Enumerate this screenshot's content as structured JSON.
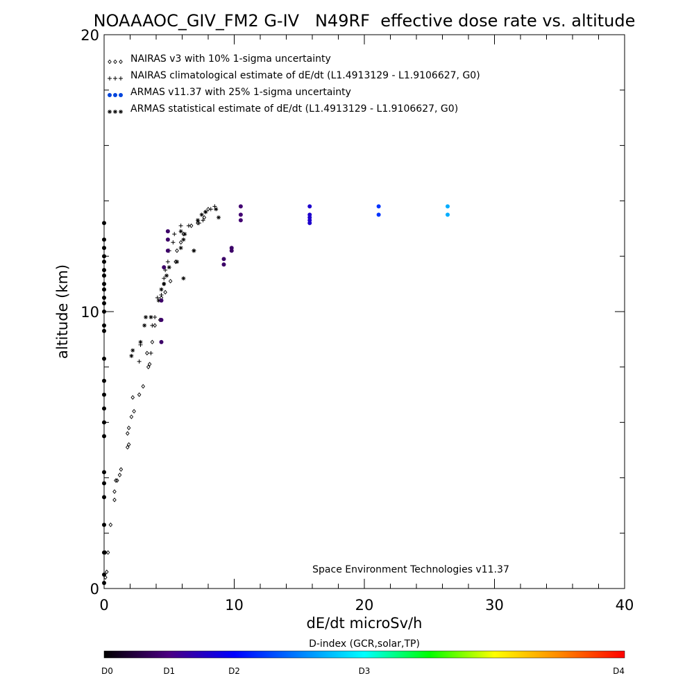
{
  "chart_data": {
    "type": "scatter",
    "title": "NOAAAOC_GIV_FM2 G-IV   N49RF  effective dose rate vs. altitude",
    "xlabel": "dE/dt microSv/h",
    "ylabel": "altitude (km)",
    "xlim": [
      0,
      40
    ],
    "ylim": [
      0,
      20
    ],
    "x_ticks": [
      0,
      10,
      20,
      30,
      40
    ],
    "y_ticks": [
      0,
      10,
      20
    ],
    "grid": false,
    "legend_position": "top-left",
    "credit": "Space Environment Technologies v11.37",
    "colorbar": {
      "title": "D-index (GCR,solar,TP)",
      "labels": [
        "D0",
        "D1",
        "D2",
        "D3",
        "D4"
      ],
      "positions": [
        0,
        0.125,
        0.25,
        0.5,
        1
      ]
    },
    "series": [
      {
        "name": "NAIRAS v3 with 10% 1-sigma uncertainty",
        "marker": "diamond",
        "color": "#000000",
        "points": [
          [
            0.1,
            0.4
          ],
          [
            0.2,
            0.6
          ],
          [
            0.1,
            1.3
          ],
          [
            0.3,
            1.3
          ],
          [
            0.5,
            2.3
          ],
          [
            0.8,
            3.2
          ],
          [
            0.8,
            3.5
          ],
          [
            0.9,
            3.9
          ],
          [
            1.0,
            3.9
          ],
          [
            1.2,
            4.1
          ],
          [
            1.3,
            4.3
          ],
          [
            1.8,
            5.1
          ],
          [
            1.9,
            5.2
          ],
          [
            1.8,
            5.6
          ],
          [
            1.9,
            5.8
          ],
          [
            2.1,
            6.2
          ],
          [
            2.3,
            6.4
          ],
          [
            2.2,
            6.9
          ],
          [
            2.7,
            7.0
          ],
          [
            3.0,
            7.3
          ],
          [
            3.4,
            8.0
          ],
          [
            3.5,
            8.1
          ],
          [
            3.3,
            8.5
          ],
          [
            3.7,
            8.9
          ],
          [
            3.9,
            9.5
          ],
          [
            4.3,
            9.7
          ],
          [
            4.4,
            10.5
          ],
          [
            4.7,
            10.7
          ],
          [
            4.6,
            11.0
          ],
          [
            5.1,
            11.1
          ],
          [
            5.5,
            11.8
          ],
          [
            5.6,
            12.2
          ],
          [
            5.9,
            12.5
          ],
          [
            6.1,
            12.8
          ],
          [
            6.7,
            13.1
          ],
          [
            7.2,
            13.2
          ],
          [
            7.7,
            13.4
          ],
          [
            8.0,
            13.7
          ]
        ]
      },
      {
        "name": "NAIRAS climatological estimate of dE/dt (L1.4913129 - L1.9106627, G0)",
        "marker": "plus",
        "color": "#000000",
        "points": [
          [
            2.8,
            8.8
          ],
          [
            2.7,
            8.2
          ],
          [
            3.6,
            8.5
          ],
          [
            3.7,
            9.5
          ],
          [
            3.9,
            9.8
          ],
          [
            4.1,
            10.5
          ],
          [
            4.4,
            10.6
          ],
          [
            4.6,
            11.2
          ],
          [
            4.7,
            11.5
          ],
          [
            4.9,
            11.8
          ],
          [
            5.0,
            12.2
          ],
          [
            5.3,
            12.5
          ],
          [
            5.4,
            12.8
          ],
          [
            5.9,
            13.1
          ],
          [
            6.5,
            13.1
          ],
          [
            6.9,
            12.2
          ],
          [
            7.3,
            13.2
          ],
          [
            7.6,
            13.3
          ],
          [
            7.8,
            13.6
          ],
          [
            8.2,
            13.7
          ],
          [
            8.5,
            13.8
          ]
        ]
      },
      {
        "name": "ARMAS v11.37 with 25% 1-sigma uncertainty",
        "marker": "dot",
        "color": "#0044dd",
        "points": [
          {
            "x": 0,
            "y": 9.3,
            "c": 0
          },
          {
            "x": 0,
            "y": 9.5,
            "c": 0
          },
          {
            "x": 0,
            "y": 10.0,
            "c": 0
          },
          {
            "x": 0,
            "y": 10.3,
            "c": 0
          },
          {
            "x": 0,
            "y": 10.5,
            "c": 0
          },
          {
            "x": 0,
            "y": 10.8,
            "c": 0
          },
          {
            "x": 0,
            "y": 11.0,
            "c": 0
          },
          {
            "x": 0,
            "y": 11.3,
            "c": 0
          },
          {
            "x": 0,
            "y": 11.5,
            "c": 0
          },
          {
            "x": 0,
            "y": 11.8,
            "c": 0
          },
          {
            "x": 0,
            "y": 12.0,
            "c": 0
          },
          {
            "x": 0,
            "y": 12.3,
            "c": 0
          },
          {
            "x": 0,
            "y": 12.6,
            "c": 0
          },
          {
            "x": 0,
            "y": 13.2,
            "c": 0
          },
          {
            "x": 0,
            "y": 8.3,
            "c": 0
          },
          {
            "x": 0,
            "y": 7.5,
            "c": 0
          },
          {
            "x": 0,
            "y": 7.0,
            "c": 0
          },
          {
            "x": 0,
            "y": 6.5,
            "c": 0
          },
          {
            "x": 0,
            "y": 6.0,
            "c": 0
          },
          {
            "x": 0,
            "y": 5.5,
            "c": 0
          },
          {
            "x": 0,
            "y": 4.2,
            "c": 0
          },
          {
            "x": 0,
            "y": 3.8,
            "c": 0
          },
          {
            "x": 0,
            "y": 3.3,
            "c": 0
          },
          {
            "x": 0,
            "y": 2.3,
            "c": 0
          },
          {
            "x": 0,
            "y": 1.3,
            "c": 0
          },
          {
            "x": 0,
            "y": 0.5,
            "c": 0
          },
          {
            "x": 0,
            "y": 0.2,
            "c": 0
          },
          {
            "x": 4.4,
            "y": 8.9,
            "c": 0.1
          },
          {
            "x": 4.4,
            "y": 9.7,
            "c": 0.1
          },
          {
            "x": 4.4,
            "y": 10.4,
            "c": 0.1
          },
          {
            "x": 4.6,
            "y": 11.6,
            "c": 0.1
          },
          {
            "x": 4.9,
            "y": 12.2,
            "c": 0.1
          },
          {
            "x": 4.9,
            "y": 12.6,
            "c": 0.1
          },
          {
            "x": 4.9,
            "y": 12.9,
            "c": 0.1
          },
          {
            "x": 9.2,
            "y": 11.7,
            "c": 0.1
          },
          {
            "x": 9.2,
            "y": 11.9,
            "c": 0.1
          },
          {
            "x": 9.8,
            "y": 12.2,
            "c": 0.1
          },
          {
            "x": 9.8,
            "y": 12.3,
            "c": 0.1
          },
          {
            "x": 10.5,
            "y": 13.3,
            "c": 0.11
          },
          {
            "x": 10.5,
            "y": 13.5,
            "c": 0.11
          },
          {
            "x": 10.5,
            "y": 13.8,
            "c": 0.11
          },
          {
            "x": 15.8,
            "y": 13.2,
            "c": 0.2
          },
          {
            "x": 15.8,
            "y": 13.3,
            "c": 0.2
          },
          {
            "x": 15.8,
            "y": 13.4,
            "c": 0.2
          },
          {
            "x": 15.8,
            "y": 13.5,
            "c": 0.2
          },
          {
            "x": 15.8,
            "y": 13.8,
            "c": 0.2
          },
          {
            "x": 21.1,
            "y": 13.5,
            "c": 0.3
          },
          {
            "x": 21.1,
            "y": 13.8,
            "c": 0.3
          },
          {
            "x": 26.4,
            "y": 13.5,
            "c": 0.42
          },
          {
            "x": 26.4,
            "y": 13.8,
            "c": 0.42
          }
        ]
      },
      {
        "name": "ARMAS statistical estimate of dE/dt (L1.4913129 - L1.9106627, G0)",
        "marker": "asterisk",
        "color": "#000000",
        "points": [
          [
            2.1,
            8.4
          ],
          [
            2.2,
            8.6
          ],
          [
            2.8,
            8.9
          ],
          [
            3.1,
            9.5
          ],
          [
            3.2,
            9.8
          ],
          [
            3.6,
            9.8
          ],
          [
            4.2,
            10.4
          ],
          [
            4.4,
            10.8
          ],
          [
            4.6,
            11.0
          ],
          [
            4.8,
            11.3
          ],
          [
            5.0,
            11.6
          ],
          [
            5.6,
            11.8
          ],
          [
            5.9,
            12.3
          ],
          [
            6.1,
            12.6
          ],
          [
            6.2,
            12.8
          ],
          [
            6.9,
            12.2
          ],
          [
            7.2,
            13.3
          ],
          [
            7.5,
            13.5
          ],
          [
            7.8,
            13.6
          ],
          [
            8.6,
            13.7
          ],
          [
            8.8,
            13.4
          ],
          [
            6.1,
            11.2
          ],
          [
            5.9,
            12.9
          ]
        ]
      }
    ]
  }
}
